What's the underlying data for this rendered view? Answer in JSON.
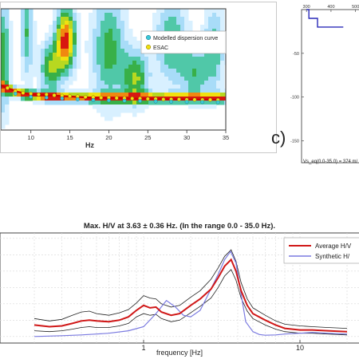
{
  "chart_data": [
    {
      "type": "heatmap",
      "xlabel": "Hz",
      "xlim": [
        0,
        35
      ],
      "x_ticks": [
        "10",
        "15",
        "20",
        "25",
        "30",
        "35"
      ],
      "legend": {
        "placement": "top-right",
        "entries": [
          "Modelled dispersion curve",
          "ESAC"
        ]
      },
      "series": [
        {
          "name": "Modelled dispersion curve",
          "x": [
            3,
            4,
            5,
            6,
            8,
            10,
            12,
            14,
            16,
            18,
            20,
            22,
            24,
            26,
            28,
            30,
            32,
            34
          ],
          "y": [
            0.58,
            0.45,
            0.34,
            0.28,
            0.24,
            0.22,
            0.215,
            0.21,
            0.205,
            0.2,
            0.198,
            0.196,
            0.194,
            0.192,
            0.19,
            0.189,
            0.188,
            0.187
          ]
        },
        {
          "name": "ESAC",
          "x": [
            3,
            4,
            5,
            6,
            7,
            8,
            9,
            10,
            11,
            12,
            13,
            14,
            15,
            16,
            17,
            18,
            19,
            20,
            21,
            22,
            23,
            24,
            25,
            26,
            27,
            28,
            29,
            30,
            31,
            32,
            33,
            34
          ],
          "y": [
            0.5,
            0.4,
            0.33,
            0.28,
            0.26,
            0.24,
            0.23,
            0.225,
            0.22,
            0.22,
            0.215,
            0.212,
            0.21,
            0.208,
            0.205,
            0.203,
            0.2,
            0.2,
            0.198,
            0.197,
            0.195,
            0.195,
            0.193,
            0.193,
            0.19,
            0.19,
            0.19,
            0.188,
            0.188,
            0.187,
            0.187,
            0.186
          ]
        }
      ],
      "colors": {
        "curve": "#d00000",
        "modelled_marker": "#3cc8d8",
        "esac_marker": "#f0e010"
      }
    },
    {
      "type": "line",
      "x_top_ticks": [
        "300",
        "400",
        "500"
      ],
      "y_ticks": [
        "-50",
        "-100",
        "-150"
      ],
      "ylim": [
        -175,
        0
      ],
      "annotation": "Vs_eq(0.0-35.0) = 374 m/",
      "series": [
        {
          "x": [
            300,
            310,
            310,
            345,
            345,
            450
          ],
          "y": [
            0,
            0,
            -10,
            -10,
            -20,
            -20
          ]
        }
      ],
      "colors": {
        "profile": "#2a2ab8"
      }
    },
    {
      "type": "line",
      "title": "Max. H/V at 3.63 ± 0.36 Hz. (In the range 0.0 - 35.0 Hz).",
      "xlabel": "frequency [Hz]",
      "x_scale": "log",
      "x_ticks": [
        "1",
        "10"
      ],
      "legend": {
        "placement": "top-right",
        "entries": [
          "Average H/V",
          "Synthetic H/"
        ]
      },
      "series": [
        {
          "name": "Average H/V",
          "x": [
            0.2,
            0.25,
            0.3,
            0.35,
            0.4,
            0.45,
            0.5,
            0.6,
            0.7,
            0.8,
            0.9,
            1.0,
            1.1,
            1.2,
            1.3,
            1.5,
            1.7,
            2.0,
            2.3,
            2.7,
            3.0,
            3.3,
            3.63,
            3.9,
            4.2,
            4.6,
            5.0,
            6.0,
            7.0,
            8.0,
            10,
            12,
            15,
            20
          ],
          "y": [
            1.7,
            1.6,
            1.65,
            1.8,
            1.95,
            2.0,
            1.95,
            1.9,
            2.0,
            2.2,
            2.6,
            2.9,
            2.75,
            2.8,
            2.5,
            2.3,
            2.4,
            2.9,
            3.3,
            3.9,
            4.6,
            5.3,
            5.7,
            5.0,
            3.8,
            2.9,
            2.4,
            2.0,
            1.7,
            1.5,
            1.4,
            1.4,
            1.35,
            1.3
          ],
          "upper": [
            2.1,
            1.95,
            2.05,
            2.3,
            2.5,
            2.55,
            2.4,
            2.3,
            2.45,
            2.65,
            3.05,
            3.5,
            3.35,
            3.3,
            3.0,
            2.8,
            2.9,
            3.4,
            3.8,
            4.5,
            5.2,
            5.9,
            6.3,
            5.6,
            4.3,
            3.3,
            2.75,
            2.3,
            1.95,
            1.75,
            1.65,
            1.6,
            1.55,
            1.5
          ],
          "lower": [
            1.35,
            1.3,
            1.35,
            1.45,
            1.55,
            1.6,
            1.55,
            1.55,
            1.65,
            1.8,
            2.2,
            2.4,
            2.3,
            2.35,
            2.1,
            1.9,
            2.0,
            2.45,
            2.85,
            3.35,
            4.0,
            4.7,
            5.1,
            4.45,
            3.35,
            2.55,
            2.1,
            1.7,
            1.45,
            1.3,
            1.2,
            1.2,
            1.15,
            1.1
          ]
        },
        {
          "name": "Synthetic H/",
          "x": [
            0.2,
            0.3,
            0.4,
            0.5,
            0.6,
            0.8,
            1.0,
            1.2,
            1.4,
            1.6,
            1.8,
            2.0,
            2.3,
            2.6,
            3.0,
            3.3,
            3.6,
            3.9,
            4.2,
            4.5,
            5.0,
            5.5,
            6.0,
            7.0,
            8.0,
            10,
            12,
            15,
            20
          ],
          "y": [
            1.0,
            1.05,
            1.1,
            1.15,
            1.2,
            1.35,
            1.6,
            2.4,
            3.2,
            2.8,
            2.3,
            2.2,
            2.6,
            3.6,
            4.8,
            5.7,
            6.2,
            5.5,
            3.6,
            1.9,
            1.3,
            1.12,
            1.08,
            1.1,
            1.15,
            1.2,
            1.25,
            1.2,
            1.15
          ]
        }
      ],
      "colors": {
        "average": "#d01818",
        "synthetic": "#7a7ae0",
        "band": "#222222"
      }
    }
  ],
  "panel_letter": "c)"
}
